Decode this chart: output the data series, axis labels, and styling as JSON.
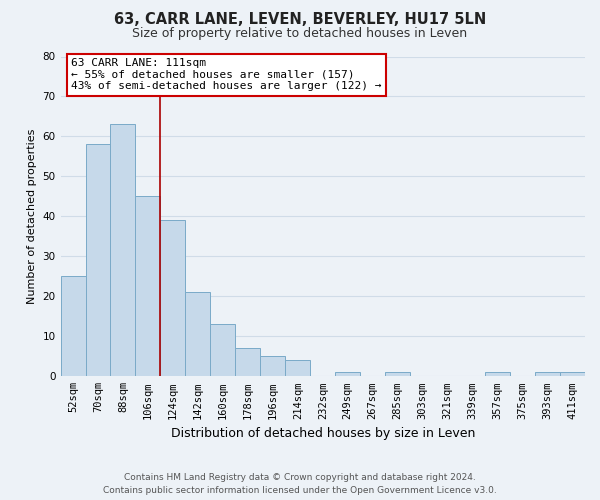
{
  "title": "63, CARR LANE, LEVEN, BEVERLEY, HU17 5LN",
  "subtitle": "Size of property relative to detached houses in Leven",
  "xlabel": "Distribution of detached houses by size in Leven",
  "ylabel": "Number of detached properties",
  "bar_color": "#c6d9ea",
  "bar_edge_color": "#7aaac8",
  "categories": [
    "52sqm",
    "70sqm",
    "88sqm",
    "106sqm",
    "124sqm",
    "142sqm",
    "160sqm",
    "178sqm",
    "196sqm",
    "214sqm",
    "232sqm",
    "249sqm",
    "267sqm",
    "285sqm",
    "303sqm",
    "321sqm",
    "339sqm",
    "357sqm",
    "375sqm",
    "393sqm",
    "411sqm"
  ],
  "values": [
    25,
    58,
    63,
    45,
    39,
    21,
    13,
    7,
    5,
    4,
    0,
    1,
    0,
    1,
    0,
    0,
    0,
    1,
    0,
    1,
    1
  ],
  "ylim": [
    0,
    80
  ],
  "yticks": [
    0,
    10,
    20,
    30,
    40,
    50,
    60,
    70,
    80
  ],
  "vline_index": 3,
  "vline_color": "#aa0000",
  "annotation_line1": "63 CARR LANE: 111sqm",
  "annotation_line2": "← 55% of detached houses are smaller (157)",
  "annotation_line3": "43% of semi-detached houses are larger (122) →",
  "annotation_box_facecolor": "#ffffff",
  "annotation_box_edgecolor": "#cc0000",
  "footer_line1": "Contains HM Land Registry data © Crown copyright and database right 2024.",
  "footer_line2": "Contains public sector information licensed under the Open Government Licence v3.0.",
  "grid_color": "#d0dce8",
  "background_color": "#edf2f7",
  "title_fontsize": 10.5,
  "subtitle_fontsize": 9,
  "ylabel_fontsize": 8,
  "xlabel_fontsize": 9,
  "tick_fontsize": 7.5,
  "footer_fontsize": 6.5
}
